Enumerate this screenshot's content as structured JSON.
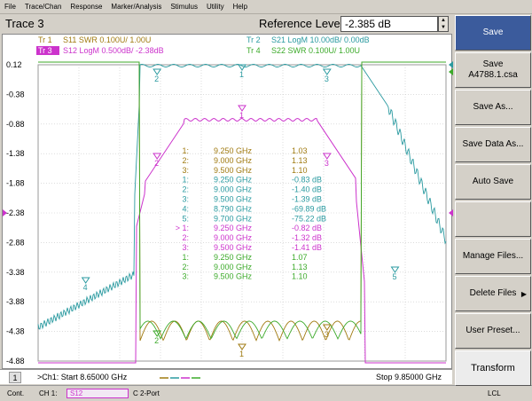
{
  "menu": [
    "File",
    "Trace/Chan",
    "Response",
    "Marker/Analysis",
    "Stimulus",
    "Utility",
    "Help"
  ],
  "trace_title": "Trace 3",
  "reference": {
    "label": "Reference Level",
    "value": "-2.385 dB"
  },
  "trace_labels": [
    {
      "id": "Tr 1",
      "text": "S11 SWR 0.100U/  1.00U",
      "color": "#a07a10"
    },
    {
      "id": "Tr 2",
      "text": "S21 LogM 10.00dB/  0.00dB",
      "color": "#2a9aa0"
    },
    {
      "id": "Tr 3",
      "text": "S12 LogM 0.500dB/ -2.38dB",
      "color": "#cc33cc",
      "active": true
    },
    {
      "id": "Tr 4",
      "text": "S22 SWR 0.100U/  1.00U",
      "color": "#3caa2a"
    }
  ],
  "y_ticks": [
    "0.12",
    "-0.38",
    "-0.88",
    "-1.38",
    "-1.88",
    "-2.38",
    "-2.88",
    "-3.38",
    "-3.88",
    "-4.38",
    "-4.88"
  ],
  "marker_table": [
    {
      "n": "1:",
      "f": "9.250 GHz",
      "v": "1.03",
      "color": "#a07a10"
    },
    {
      "n": "2:",
      "f": "9.000 GHz",
      "v": "1.13",
      "color": "#a07a10"
    },
    {
      "n": "3:",
      "f": "9.500 GHz",
      "v": "1.10",
      "color": "#a07a10"
    },
    {
      "n": "1:",
      "f": "9.250 GHz",
      "v": "-0.83 dB",
      "color": "#2a9aa0"
    },
    {
      "n": "2:",
      "f": "9.000 GHz",
      "v": "-1.40 dB",
      "color": "#2a9aa0"
    },
    {
      "n": "3:",
      "f": "9.500 GHz",
      "v": "-1.39 dB",
      "color": "#2a9aa0"
    },
    {
      "n": "4:",
      "f": "8.790 GHz",
      "v": "-69.89 dB",
      "color": "#2a9aa0"
    },
    {
      "n": "5:",
      "f": "9.700 GHz",
      "v": "-75.22 dB",
      "color": "#2a9aa0"
    },
    {
      "n": "> 1:",
      "f": "9.250 GHz",
      "v": "-0.82 dB",
      "color": "#cc33cc"
    },
    {
      "n": "2:",
      "f": "9.000 GHz",
      "v": "-1.32 dB",
      "color": "#cc33cc"
    },
    {
      "n": "3:",
      "f": "9.500 GHz",
      "v": "-1.41 dB",
      "color": "#cc33cc"
    },
    {
      "n": "1:",
      "f": "9.250 GHz",
      "v": "1.07",
      "color": "#3caa2a"
    },
    {
      "n": "2:",
      "f": "9.000 GHz",
      "v": "1.13",
      "color": "#3caa2a"
    },
    {
      "n": "3:",
      "f": "9.500 GHz",
      "v": "1.10",
      "color": "#3caa2a"
    }
  ],
  "channel": {
    "number": "1",
    "start": ">Ch1: Start  8.65000 GHz",
    "stop": "Stop  9.85000 GHz"
  },
  "bottom": {
    "cont": "Cont.",
    "ch": "CH 1:",
    "sparam": "S12",
    "port": "C  2-Port",
    "lcl": "LCL"
  },
  "softkeys": [
    {
      "label": "Save",
      "active": true
    },
    {
      "label": "Save",
      "sub": "A4788.1.csa"
    },
    {
      "label": "Save As..."
    },
    {
      "label": "Save Data As..."
    },
    {
      "label": "Auto Save"
    },
    {
      "label": ""
    },
    {
      "label": "Manage Files..."
    },
    {
      "label": "Delete Files",
      "arrow": "▶"
    },
    {
      "label": "User Preset..."
    },
    {
      "label": "Transform",
      "bottom": true
    }
  ],
  "colors": {
    "tr1": "#a07a10",
    "tr2": "#2a9aa0",
    "tr3": "#cc33cc",
    "tr4": "#3caa2a",
    "grid": "#c8c8c8"
  },
  "chart_data": {
    "type": "line",
    "x_range_ghz": [
      8.65,
      9.85
    ],
    "y_ticks_tr3_db": [
      0.12,
      -0.38,
      -0.88,
      -1.38,
      -1.88,
      -2.38,
      -2.88,
      -3.38,
      -3.88,
      -4.38,
      -4.88
    ],
    "grid": true,
    "series": [
      {
        "name": "S11 SWR",
        "markers": [
          [
            9.25,
            1.03
          ],
          [
            9.0,
            1.13
          ],
          [
            9.5,
            1.1
          ]
        ]
      },
      {
        "name": "S21 LogM",
        "markers": [
          [
            9.25,
            -0.83
          ],
          [
            9.0,
            -1.4
          ],
          [
            9.5,
            -1.39
          ],
          [
            8.79,
            -69.89
          ],
          [
            9.7,
            -75.22
          ]
        ]
      },
      {
        "name": "S12 LogM",
        "markers": [
          [
            9.25,
            -0.82
          ],
          [
            9.0,
            -1.32
          ],
          [
            9.5,
            -1.41
          ]
        ]
      },
      {
        "name": "S22 SWR",
        "markers": [
          [
            9.25,
            1.07
          ],
          [
            9.0,
            1.13
          ],
          [
            9.5,
            1.1
          ]
        ]
      }
    ]
  }
}
